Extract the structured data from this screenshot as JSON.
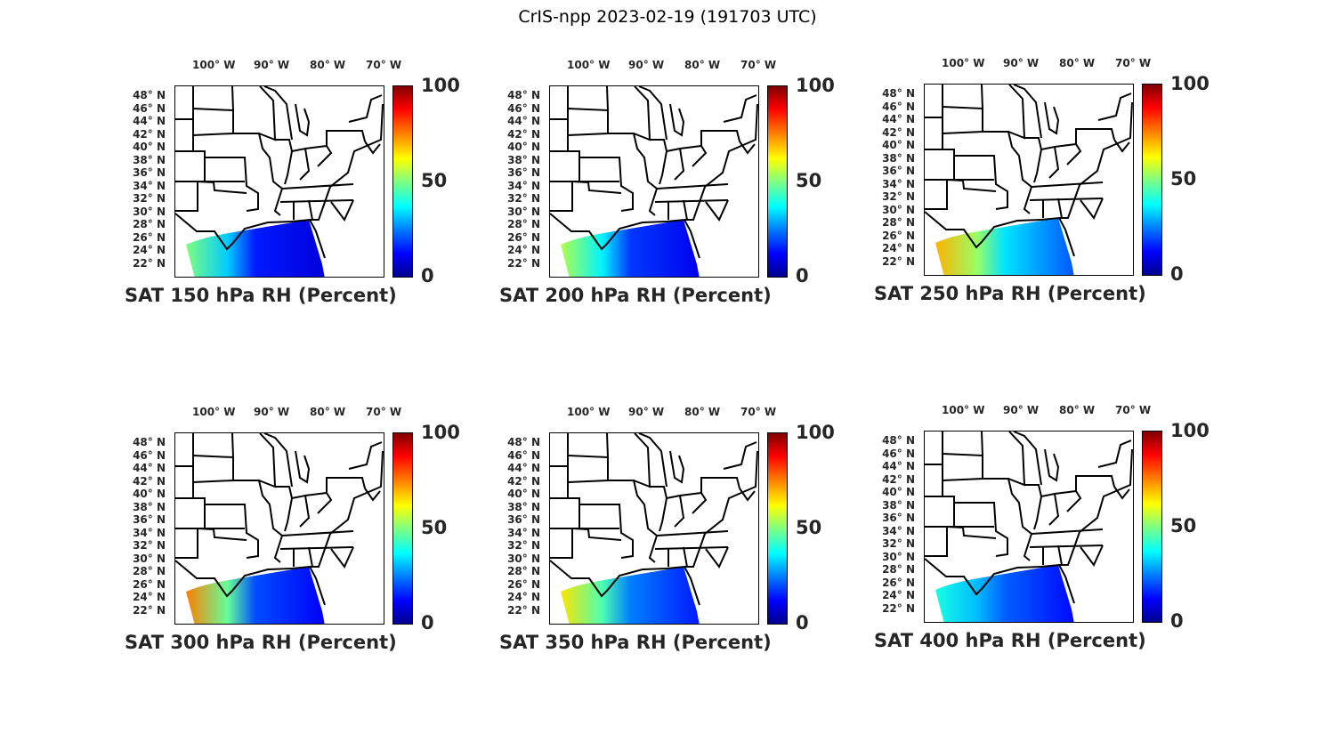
{
  "title": "CrIS-npp 2023-02-19 (191703 UTC)",
  "lon_labels": [
    "100° W",
    "90° W",
    "80° W",
    "70° W"
  ],
  "lat_labels": [
    "48° N",
    "46° N",
    "44° N",
    "42° N",
    "40° N",
    "38° N",
    "36° N",
    "34° N",
    "32° N",
    "30° N",
    "28° N",
    "26° N",
    "24° N",
    "22° N"
  ],
  "colorbar": {
    "ticks": [
      "100",
      "50",
      "0"
    ],
    "min": 0,
    "max": 100,
    "colormap": "jet"
  },
  "panels": [
    {
      "title": "SAT 150 hPa RH (Percent)",
      "west_rh": 50,
      "east_rh": 15
    },
    {
      "title": "SAT 200 hPa RH (Percent)",
      "west_rh": 55,
      "east_rh": 18
    },
    {
      "title": "SAT 250 hPa RH (Percent)",
      "west_rh": 70,
      "east_rh": 35
    },
    {
      "title": "SAT 300 hPa RH (Percent)",
      "west_rh": 75,
      "east_rh": 20
    },
    {
      "title": "SAT 350 hPa RH (Percent)",
      "west_rh": 65,
      "east_rh": 25
    },
    {
      "title": "SAT 400 hPa RH (Percent)",
      "west_rh": 40,
      "east_rh": 22
    }
  ]
}
